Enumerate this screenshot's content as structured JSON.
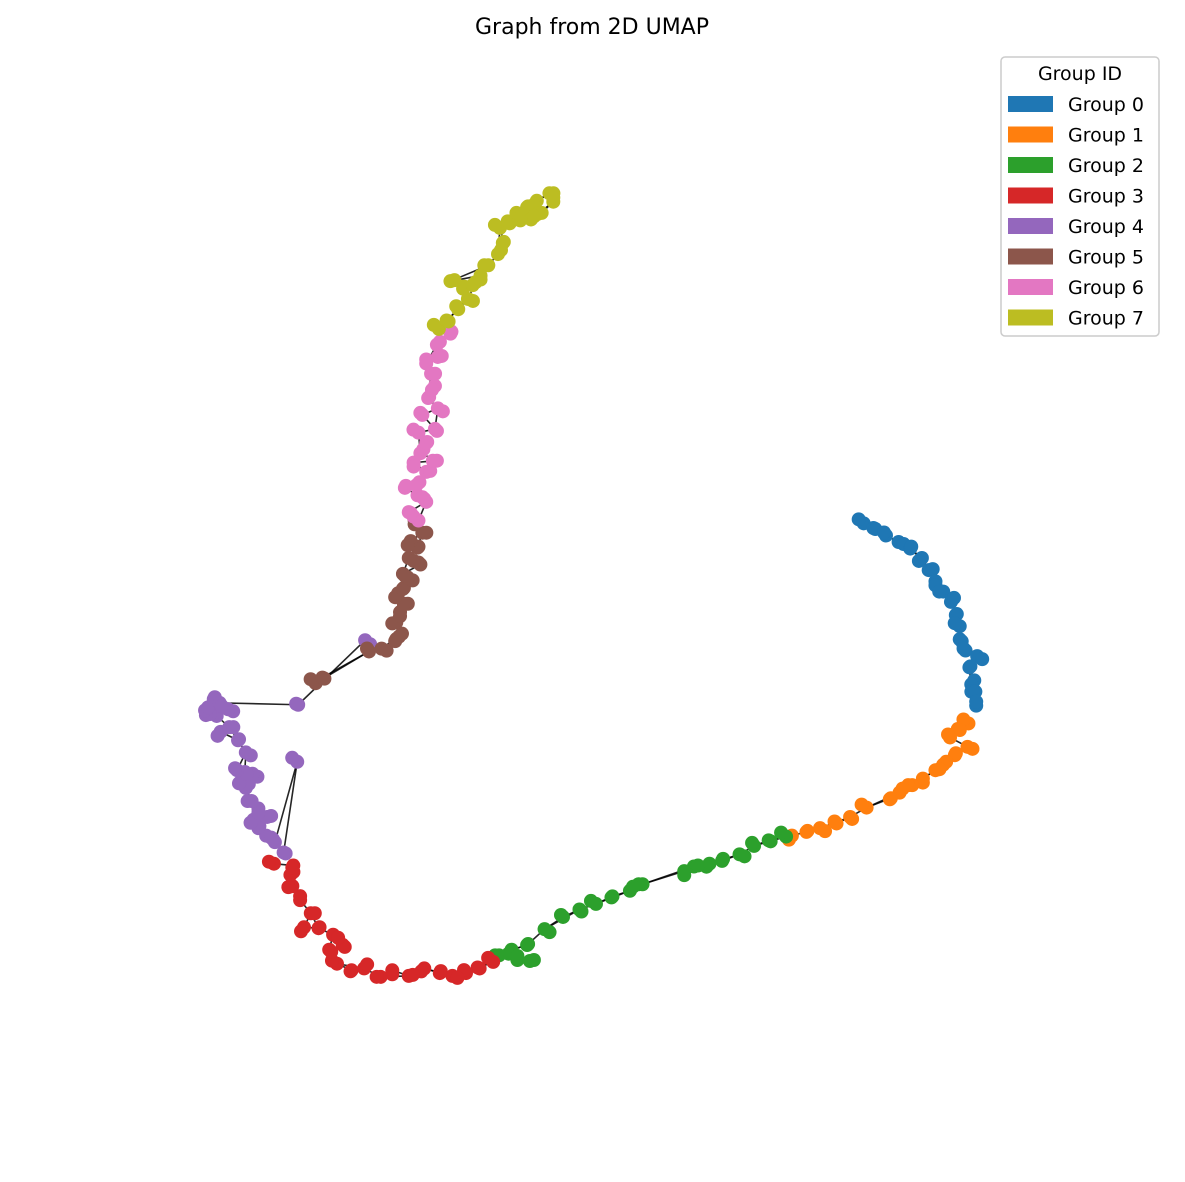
{
  "chart_data": {
    "type": "scatter",
    "title": "Graph from 2D UMAP",
    "xlabel": "",
    "ylabel": "",
    "axes_visible": false,
    "grid": false,
    "xlim": [
      0,
      100
    ],
    "ylim": [
      0,
      100
    ],
    "legend": {
      "title": "Group ID",
      "placement": "top-right",
      "entries": [
        {
          "label": "Group 0",
          "color": "#1f77b4"
        },
        {
          "label": "Group 1",
          "color": "#ff7f0e"
        },
        {
          "label": "Group 2",
          "color": "#2ca02c"
        },
        {
          "label": "Group 3",
          "color": "#d62728"
        },
        {
          "label": "Group 4",
          "color": "#9467bd"
        },
        {
          "label": "Group 5",
          "color": "#8c564b"
        },
        {
          "label": "Group 6",
          "color": "#e377c2"
        },
        {
          "label": "Group 7",
          "color": "#bcbd22"
        }
      ]
    },
    "series": [
      {
        "group": 0,
        "color": "#1f77b4",
        "points": [
          [
            77.7,
            59.0
          ],
          [
            78.7,
            58.5
          ],
          [
            80.0,
            57.7
          ],
          [
            81.3,
            57.0
          ],
          [
            82.5,
            56.3
          ],
          [
            83.7,
            55.3
          ],
          [
            84.4,
            54.0
          ],
          [
            85.1,
            52.8
          ],
          [
            85.9,
            51.7
          ],
          [
            86.7,
            50.6
          ],
          [
            87.3,
            49.3
          ],
          [
            87.6,
            48.0
          ],
          [
            87.6,
            46.6
          ],
          [
            88.2,
            45.4
          ],
          [
            89.4,
            44.8
          ],
          [
            88.6,
            43.6
          ],
          [
            89.1,
            42.2
          ],
          [
            88.8,
            41.0
          ],
          [
            89.3,
            39.5
          ]
        ]
      },
      {
        "group": 1,
        "color": "#ff7f0e",
        "points": [
          [
            88.5,
            37.6
          ],
          [
            87.4,
            37.0
          ],
          [
            86.6,
            36.1
          ],
          [
            88.4,
            35.1
          ],
          [
            87.1,
            34.2
          ],
          [
            86.2,
            33.5
          ],
          [
            85.1,
            32.6
          ],
          [
            83.8,
            31.7
          ],
          [
            82.7,
            31.0
          ],
          [
            81.4,
            30.2
          ],
          [
            80.5,
            29.6
          ],
          [
            78.0,
            28.6
          ],
          [
            76.3,
            27.6
          ],
          [
            74.9,
            26.9
          ],
          [
            73.2,
            26.4
          ],
          [
            71.8,
            26.0
          ],
          [
            70.3,
            25.6
          ]
        ]
      },
      {
        "group": 2,
        "color": "#2ca02c",
        "points": [
          [
            69.7,
            25.5
          ],
          [
            67.9,
            25.1
          ],
          [
            66.4,
            24.5
          ],
          [
            64.9,
            23.6
          ],
          [
            63.1,
            22.9
          ],
          [
            61.8,
            22.6
          ],
          [
            60.2,
            22.3
          ],
          [
            59.2,
            21.8
          ],
          [
            54.9,
            20.4
          ],
          [
            53.6,
            19.7
          ],
          [
            51.8,
            19.1
          ],
          [
            50.1,
            18.3
          ],
          [
            48.4,
            17.7
          ],
          [
            46.7,
            16.9
          ],
          [
            44.8,
            15.6
          ],
          [
            43.0,
            13.9
          ],
          [
            41.4,
            13.4
          ],
          [
            39.7,
            12.8
          ],
          [
            42.0,
            12.3
          ],
          [
            43.7,
            12.3
          ]
        ]
      },
      {
        "group": 3,
        "color": "#d62728",
        "points": [
          [
            39.5,
            12.1
          ],
          [
            37.9,
            11.5
          ],
          [
            36.7,
            10.9
          ],
          [
            35.3,
            10.6
          ],
          [
            34.0,
            10.9
          ],
          [
            32.4,
            11.4
          ],
          [
            30.8,
            10.6
          ],
          [
            29.1,
            11.2
          ],
          [
            27.9,
            10.5
          ],
          [
            26.2,
            11.4
          ],
          [
            24.9,
            11.2
          ],
          [
            23.4,
            11.9
          ],
          [
            22.6,
            13.4
          ],
          [
            24.2,
            13.7
          ],
          [
            23.0,
            15.0
          ],
          [
            21.5,
            15.7
          ],
          [
            20.0,
            15.8
          ],
          [
            20.7,
            17.3
          ],
          [
            19.6,
            18.7
          ],
          [
            18.8,
            20.2
          ],
          [
            18.6,
            21.4
          ],
          [
            18.9,
            22.4
          ],
          [
            16.9,
            22.6
          ]
        ]
      },
      {
        "group": 4,
        "color": "#9467bd",
        "points": [
          [
            19.3,
            33.5
          ],
          [
            17.9,
            23.8
          ],
          [
            17.0,
            24.9
          ],
          [
            16.1,
            25.6
          ],
          [
            15.3,
            26.4
          ],
          [
            14.8,
            27.3
          ],
          [
            16.2,
            27.6
          ],
          [
            15.3,
            28.5
          ],
          [
            14.6,
            29.3
          ],
          [
            14.0,
            30.7
          ],
          [
            13.4,
            31.3
          ],
          [
            15.2,
            31.9
          ],
          [
            13.9,
            32.4
          ],
          [
            13.1,
            32.6
          ],
          [
            14.0,
            34.5
          ],
          [
            13.2,
            35.8
          ],
          [
            11.4,
            36.7
          ],
          [
            12.3,
            37.2
          ],
          [
            11.0,
            38.4
          ],
          [
            10.3,
            38.6
          ],
          [
            9.8,
            39.0
          ],
          [
            10.8,
            40.4
          ],
          [
            12.7,
            38.9
          ],
          [
            11.3,
            39.8
          ],
          [
            19.4,
            39.6
          ],
          [
            26.3,
            46.5
          ]
        ]
      },
      {
        "group": 5,
        "color": "#8c564b",
        "points": [
          [
            21.2,
            41.9
          ],
          [
            21.9,
            42.5
          ],
          [
            26.7,
            45.3
          ],
          [
            28.0,
            45.6
          ],
          [
            29.4,
            46.4
          ],
          [
            30.1,
            47.2
          ],
          [
            29.1,
            48.3
          ],
          [
            29.9,
            49.5
          ],
          [
            30.7,
            50.4
          ],
          [
            29.4,
            51.1
          ],
          [
            30.3,
            52.1
          ],
          [
            31.2,
            52.9
          ],
          [
            30.2,
            53.6
          ],
          [
            32.0,
            54.6
          ],
          [
            30.8,
            55.3
          ],
          [
            31.7,
            56.4
          ],
          [
            31.0,
            57.1
          ],
          [
            32.2,
            58.0
          ],
          [
            31.4,
            58.9
          ]
        ]
      },
      {
        "group": 6,
        "color": "#e377c2",
        "points": [
          [
            31.8,
            59.3
          ],
          [
            30.8,
            60.2
          ],
          [
            32.6,
            61.3
          ],
          [
            31.7,
            62.0
          ],
          [
            30.4,
            62.8
          ],
          [
            31.9,
            63.4
          ],
          [
            32.6,
            64.5
          ],
          [
            31.3,
            65.5
          ],
          [
            33.7,
            65.7
          ],
          [
            32.0,
            66.5
          ],
          [
            32.7,
            67.7
          ],
          [
            31.8,
            68.7
          ],
          [
            33.5,
            69.1
          ],
          [
            32.2,
            70.6
          ],
          [
            33.8,
            71.3
          ],
          [
            32.8,
            72.4
          ],
          [
            33.5,
            73.7
          ],
          [
            33.1,
            75.0
          ],
          [
            32.6,
            76.1
          ],
          [
            34.2,
            76.9
          ],
          [
            33.7,
            78.1
          ],
          [
            35.2,
            79.5
          ]
        ]
      },
      {
        "group": 7,
        "color": "#bcbd22",
        "points": [
          [
            33.9,
            79.8
          ],
          [
            34.7,
            80.7
          ],
          [
            35.9,
            81.9
          ],
          [
            36.9,
            83.0
          ],
          [
            36.4,
            84.1
          ],
          [
            37.7,
            84.8
          ],
          [
            35.1,
            84.9
          ],
          [
            38.2,
            85.5
          ],
          [
            39.0,
            86.6
          ],
          [
            40.0,
            87.8
          ],
          [
            40.6,
            89.1
          ],
          [
            40.2,
            90.6
          ],
          [
            41.0,
            91.3
          ],
          [
            42.3,
            91.4
          ],
          [
            41.9,
            92.2
          ],
          [
            43.0,
            92.8
          ],
          [
            44.0,
            93.5
          ],
          [
            45.3,
            94.3
          ],
          [
            45.7,
            93.4
          ],
          [
            44.5,
            92.2
          ],
          [
            43.4,
            91.5
          ]
        ]
      }
    ]
  }
}
